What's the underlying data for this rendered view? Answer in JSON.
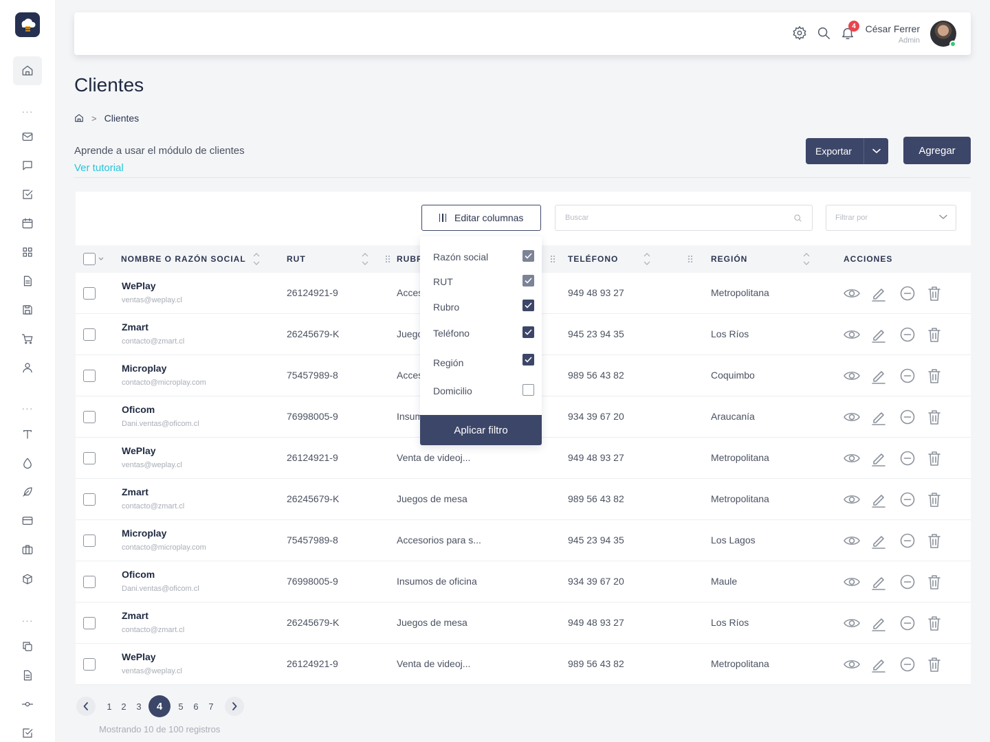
{
  "sidebar": {
    "items": [
      {
        "name": "sidebar-item-home",
        "icon": "home-icon"
      },
      {
        "name": "sidebar-item-mail",
        "icon": "mail-icon"
      },
      {
        "name": "sidebar-item-chat",
        "icon": "chat-icon"
      },
      {
        "name": "sidebar-item-tasks",
        "icon": "check-square-icon"
      },
      {
        "name": "sidebar-item-calendar",
        "icon": "calendar-icon"
      },
      {
        "name": "sidebar-item-grid",
        "icon": "grid-icon"
      },
      {
        "name": "sidebar-item-document",
        "icon": "document-icon"
      },
      {
        "name": "sidebar-item-save",
        "icon": "save-icon"
      },
      {
        "name": "sidebar-item-cart",
        "icon": "cart-icon"
      },
      {
        "name": "sidebar-item-user",
        "icon": "user-icon"
      },
      {
        "name": "sidebar-item-typography",
        "icon": "type-icon"
      },
      {
        "name": "sidebar-item-colors",
        "icon": "droplet-icon"
      },
      {
        "name": "sidebar-item-feather",
        "icon": "feather-icon"
      },
      {
        "name": "sidebar-item-card",
        "icon": "credit-card-icon"
      },
      {
        "name": "sidebar-item-briefcase",
        "icon": "briefcase-icon"
      },
      {
        "name": "sidebar-item-package",
        "icon": "package-icon"
      },
      {
        "name": "sidebar-item-copy",
        "icon": "copy-icon"
      },
      {
        "name": "sidebar-item-file",
        "icon": "file-text-icon"
      },
      {
        "name": "sidebar-item-commit",
        "icon": "git-commit-icon"
      },
      {
        "name": "sidebar-item-checkbox",
        "icon": "check-square-icon"
      }
    ]
  },
  "topbar": {
    "notification_count": "4",
    "user_name": "César Ferrer",
    "user_role": "Admin"
  },
  "page": {
    "title": "Clientes",
    "breadcrumb_current": "Clientes",
    "intro_text": "Aprende a usar el módulo de clientes",
    "tutorial_link": "Ver tutorial",
    "export_label": "Exportar",
    "add_label": "Agregar"
  },
  "toolbar": {
    "edit_columns_label": "Editar columnas",
    "search_placeholder": "Buscar",
    "filter_placeholder": "Filtrar por"
  },
  "table": {
    "headers": {
      "name": "NOMBRE O RAZÓN SOCIAL",
      "rut": "RUT",
      "rubro": "RUBRO",
      "phone": "TELÉFONO",
      "region": "REGIÓN",
      "actions": "ACCIONES"
    },
    "rows": [
      {
        "name": "WePlay",
        "email": "ventas@weplay.cl",
        "rut": "26124921-9",
        "rubro": "Accesorios para s...",
        "phone": "949 48 93 27",
        "region": "Metropolitana"
      },
      {
        "name": "Zmart",
        "email": "contacto@zmart.cl",
        "rut": "26245679-K",
        "rubro": "Juegos de mesa",
        "phone": "945 23 94 35",
        "region": "Los Ríos"
      },
      {
        "name": "Microplay",
        "email": "contacto@microplay.com",
        "rut": "75457989-8",
        "rubro": "Accesorios para s...",
        "phone": "989 56 43 82",
        "region": "Coquimbo"
      },
      {
        "name": "Oficom",
        "email": "Dani.ventas@oficom.cl",
        "rut": "76998005-9",
        "rubro": "Insumos de oficina",
        "phone": "934 39 67 20",
        "region": "Araucanía"
      },
      {
        "name": "WePlay",
        "email": "ventas@weplay.cl",
        "rut": "26124921-9",
        "rubro": "Venta de videoj...",
        "phone": "949 48 93 27",
        "region": "Metropolitana"
      },
      {
        "name": "Zmart",
        "email": "contacto@zmart.cl",
        "rut": "26245679-K",
        "rubro": "Juegos de mesa",
        "phone": "989 56 43 82",
        "region": "Metropolitana"
      },
      {
        "name": "Microplay",
        "email": "contacto@microplay.com",
        "rut": "75457989-8",
        "rubro": "Accesorios para s...",
        "phone": "945 23 94 35",
        "region": "Los Lagos"
      },
      {
        "name": "Oficom",
        "email": "Dani.ventas@oficom.cl",
        "rut": "76998005-9",
        "rubro": "Insumos de oficina",
        "phone": "934 39 67 20",
        "region": "Maule"
      },
      {
        "name": "Zmart",
        "email": "contacto@zmart.cl",
        "rut": "26245679-K",
        "rubro": "Juegos de mesa",
        "phone": "949 48 93 27",
        "region": "Los Ríos"
      },
      {
        "name": "WePlay",
        "email": "ventas@weplay.cl",
        "rut": "26124921-9",
        "rubro": "Venta de videoj...",
        "phone": "989 56 43 82",
        "region": "Metropolitana"
      }
    ]
  },
  "column_dropdown": {
    "items": [
      {
        "label": "Razón social",
        "checked": true,
        "style": "light"
      },
      {
        "label": "RUT",
        "checked": true,
        "style": "light"
      },
      {
        "label": "Rubro",
        "checked": true,
        "style": "dark"
      },
      {
        "label": "Teléfono",
        "checked": true,
        "style": "dark"
      },
      {
        "label": "Región",
        "checked": true,
        "style": "dark"
      },
      {
        "label": "Domicilio",
        "checked": false,
        "style": "off"
      }
    ],
    "apply_label": "Aplicar filtro"
  },
  "pagination": {
    "pages": [
      "1",
      "2",
      "3",
      "4",
      "5",
      "6",
      "7"
    ],
    "current": "4",
    "showing_text": "Mostrando 10 de 100 registros"
  },
  "colors": {
    "primary": "#3c4668",
    "accent_link": "#27c4d9",
    "badge": "#e8464c",
    "online": "#2ecc71"
  }
}
